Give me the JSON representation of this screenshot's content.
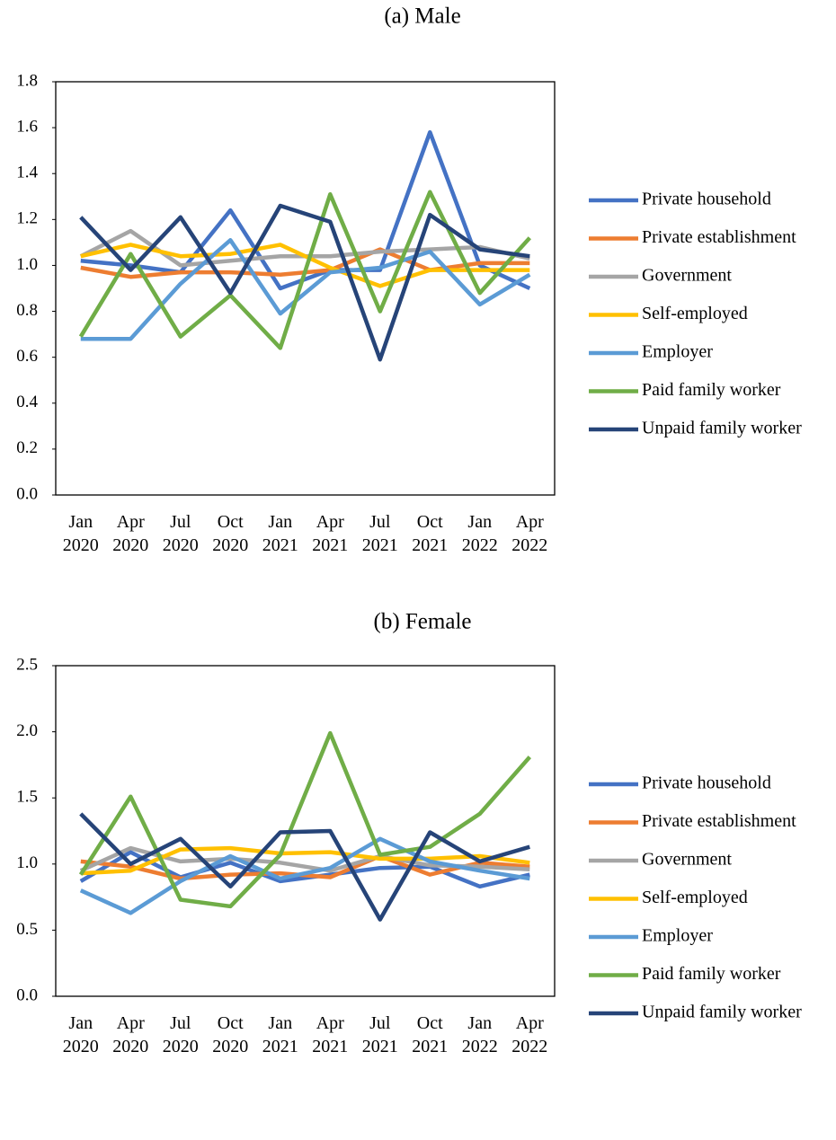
{
  "chart_data": [
    {
      "type": "line",
      "title": "(a) Male",
      "categories": [
        "Jan 2020",
        "Apr 2020",
        "Jul 2020",
        "Oct 2020",
        "Jan 2021",
        "Apr 2021",
        "Jul 2021",
        "Oct 2021",
        "Jan 2022",
        "Apr 2022"
      ],
      "ylim": [
        0,
        1.8
      ],
      "yticks": [
        {
          "value": 0,
          "label": "0.0"
        },
        0.2,
        0.4,
        0.6,
        0.8,
        {
          "value": 1,
          "label": "1.0"
        },
        1.2,
        1.4,
        1.6,
        1.8
      ],
      "legend": "right",
      "series": [
        {
          "name": "Private household",
          "color": "#4472c4",
          "values": [
            1.02,
            1.0,
            0.97,
            1.24,
            0.9,
            0.98,
            0.98,
            1.58,
            1.0,
            0.9
          ]
        },
        {
          "name": "Private establishment",
          "color": "#ed7d31",
          "values": [
            0.99,
            0.95,
            0.97,
            0.97,
            0.96,
            0.98,
            1.07,
            0.98,
            1.01,
            1.01
          ]
        },
        {
          "name": "Government",
          "color": "#a5a5a5",
          "values": [
            1.04,
            1.15,
            1.0,
            1.02,
            1.04,
            1.04,
            1.06,
            1.07,
            1.08,
            1.03
          ]
        },
        {
          "name": "Self-employed",
          "color": "#ffc000",
          "values": [
            1.04,
            1.09,
            1.04,
            1.05,
            1.09,
            0.99,
            0.91,
            0.98,
            0.98,
            0.98
          ]
        },
        {
          "name": "Employer",
          "color": "#5b9bd5",
          "values": [
            0.68,
            0.68,
            0.92,
            1.11,
            0.79,
            0.97,
            0.99,
            1.06,
            0.83,
            0.96
          ]
        },
        {
          "name": "Paid family worker",
          "color": "#70ad47",
          "values": [
            0.69,
            1.05,
            0.69,
            0.87,
            0.64,
            1.31,
            0.8,
            1.32,
            0.88,
            1.12
          ]
        },
        {
          "name": "Unpaid family worker",
          "color": "#264478",
          "values": [
            1.21,
            0.98,
            1.21,
            0.88,
            1.26,
            1.19,
            0.59,
            1.22,
            1.07,
            1.04
          ]
        }
      ]
    },
    {
      "type": "line",
      "title": "(b) Female",
      "categories": [
        "Jan 2020",
        "Apr 2020",
        "Jul 2020",
        "Oct 2020",
        "Jan 2021",
        "Apr 2021",
        "Jul 2021",
        "Oct 2021",
        "Jan 2022",
        "Apr 2022"
      ],
      "ylim": [
        0,
        2.5
      ],
      "yticks": [
        {
          "value": 0,
          "label": "0.0"
        },
        0.5,
        {
          "value": 1,
          "label": "1.0"
        },
        1.5,
        {
          "value": 2,
          "label": "2.0"
        },
        2.5
      ],
      "legend": "right",
      "series": [
        {
          "name": "Private household",
          "color": "#4472c4",
          "values": [
            0.87,
            1.09,
            0.9,
            1.01,
            0.87,
            0.92,
            0.97,
            0.98,
            0.83,
            0.92
          ]
        },
        {
          "name": "Private establishment",
          "color": "#ed7d31",
          "values": [
            1.02,
            0.98,
            0.89,
            0.92,
            0.93,
            0.9,
            1.06,
            0.92,
            1.01,
            0.98
          ]
        },
        {
          "name": "Government",
          "color": "#a5a5a5",
          "values": [
            0.95,
            1.12,
            1.02,
            1.04,
            1.01,
            0.95,
            1.06,
            0.99,
            0.98,
            0.96
          ]
        },
        {
          "name": "Self-employed",
          "color": "#ffc000",
          "values": [
            0.93,
            0.95,
            1.11,
            1.12,
            1.08,
            1.09,
            1.04,
            1.04,
            1.06,
            1.01
          ]
        },
        {
          "name": "Employer",
          "color": "#5b9bd5",
          "values": [
            0.8,
            0.63,
            0.87,
            1.06,
            0.89,
            0.97,
            1.19,
            1.02,
            0.95,
            0.89
          ]
        },
        {
          "name": "Paid family worker",
          "color": "#70ad47",
          "values": [
            0.92,
            1.51,
            0.73,
            0.68,
            1.07,
            1.99,
            1.07,
            1.13,
            1.38,
            1.81
          ]
        },
        {
          "name": "Unpaid family worker",
          "color": "#264478",
          "values": [
            1.38,
            1.0,
            1.19,
            0.83,
            1.24,
            1.25,
            0.58,
            1.24,
            1.02,
            1.13
          ]
        }
      ]
    }
  ]
}
